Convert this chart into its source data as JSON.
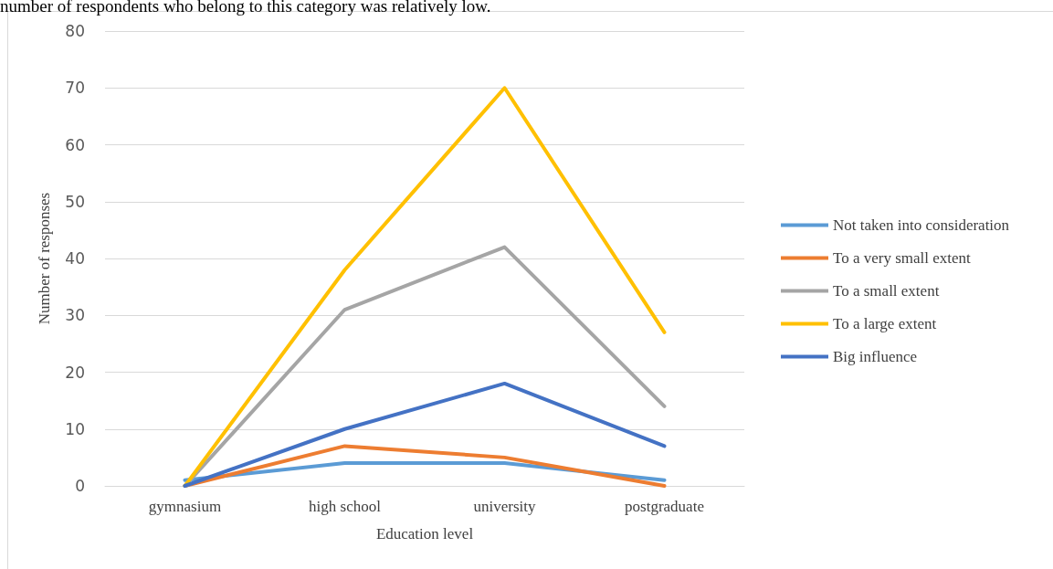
{
  "chart_data": {
    "type": "line",
    "xlabel": "Education level",
    "ylabel": "Number of responses",
    "annotations": [
      "number of respondents who belong to this category was relatively low."
    ],
    "categories": [
      "gymnasium",
      "high school",
      "university",
      "postgraduate"
    ],
    "series": [
      {
        "name": "Not taken into consideration",
        "color": "#5b9bd5",
        "values": [
          1,
          4,
          4,
          1
        ]
      },
      {
        "name": "To a very small extent",
        "color": "#ed7d31",
        "values": [
          0,
          7,
          5,
          0
        ]
      },
      {
        "name": "To a small extent",
        "color": "#a5a5a5",
        "values": [
          0,
          31,
          42,
          14
        ]
      },
      {
        "name": "To a large extent",
        "color": "#ffc000",
        "values": [
          0,
          38,
          70,
          27
        ]
      },
      {
        "name": "Big influence",
        "color": "#4472c4",
        "values": [
          0,
          10,
          18,
          7
        ]
      }
    ],
    "ylim": [
      0,
      80
    ],
    "yticks": [
      0,
      10,
      20,
      30,
      40,
      50,
      60,
      70,
      80
    ],
    "grid": "y",
    "legend": "right",
    "marker": "none",
    "line_style": "solid"
  }
}
